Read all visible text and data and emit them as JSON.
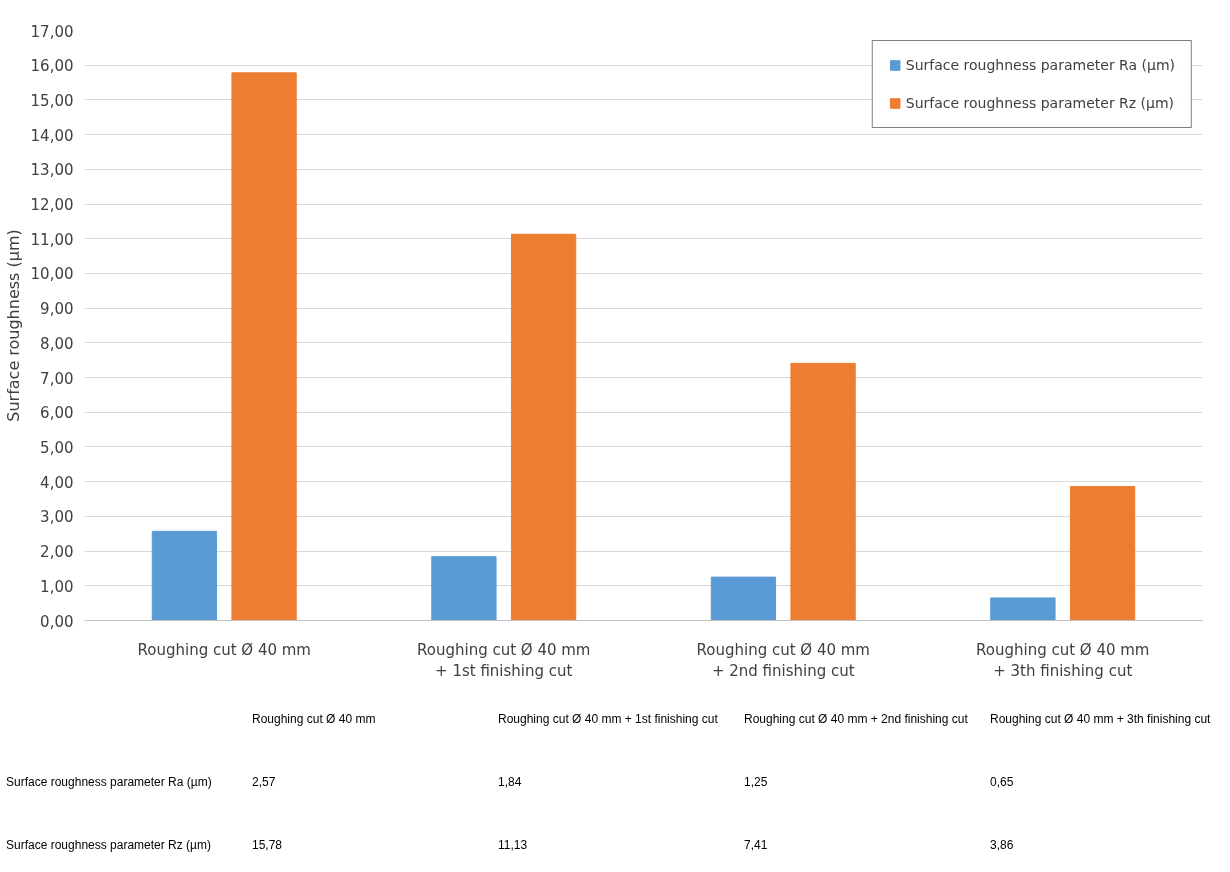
{
  "chart_data": {
    "type": "bar",
    "ylabel": "Surface roughness (µm)",
    "categories": [
      "Roughing cut Ø 40 mm",
      "Roughing cut Ø 40 mm + 1st finishing cut",
      "Roughing cut Ø 40 mm + 2nd finishing cut",
      "Roughing cut Ø 40 mm + 3th finishing cut"
    ],
    "series": [
      {
        "name": "Surface roughness parameter Ra (µm)",
        "color": "#5b9bd5",
        "values": [
          2.57,
          1.84,
          1.25,
          0.65
        ],
        "value_labels": [
          "2,57",
          "1,84",
          "1,25",
          "0,65"
        ]
      },
      {
        "name": "Surface roughness parameter Rz (µm)",
        "color": "#ed7d31",
        "values": [
          15.78,
          11.13,
          7.41,
          3.86
        ],
        "value_labels": [
          "15,78",
          "11,13",
          "7,41",
          "3,86"
        ]
      }
    ],
    "ylim": [
      0,
      17
    ],
    "yticks": [
      {
        "value": 0,
        "label": "0,00"
      },
      {
        "value": 1,
        "label": "1,00"
      },
      {
        "value": 2,
        "label": "2,00"
      },
      {
        "value": 3,
        "label": "3,00"
      },
      {
        "value": 4,
        "label": "4,00"
      },
      {
        "value": 5,
        "label": "5,00"
      },
      {
        "value": 6,
        "label": "6,00"
      },
      {
        "value": 7,
        "label": "7,00"
      },
      {
        "value": 8,
        "label": "8,00"
      },
      {
        "value": 9,
        "label": "9,00"
      },
      {
        "value": 10,
        "label": "10,00"
      },
      {
        "value": 11,
        "label": "11,00"
      },
      {
        "value": 12,
        "label": "12,00"
      },
      {
        "value": 13,
        "label": "13,00"
      },
      {
        "value": 14,
        "label": "14,00"
      },
      {
        "value": 15,
        "label": "15,00"
      },
      {
        "value": 16,
        "label": "16,00"
      },
      {
        "value": 17,
        "label": "17,00"
      }
    ],
    "grid": "y",
    "legend": "top right"
  }
}
